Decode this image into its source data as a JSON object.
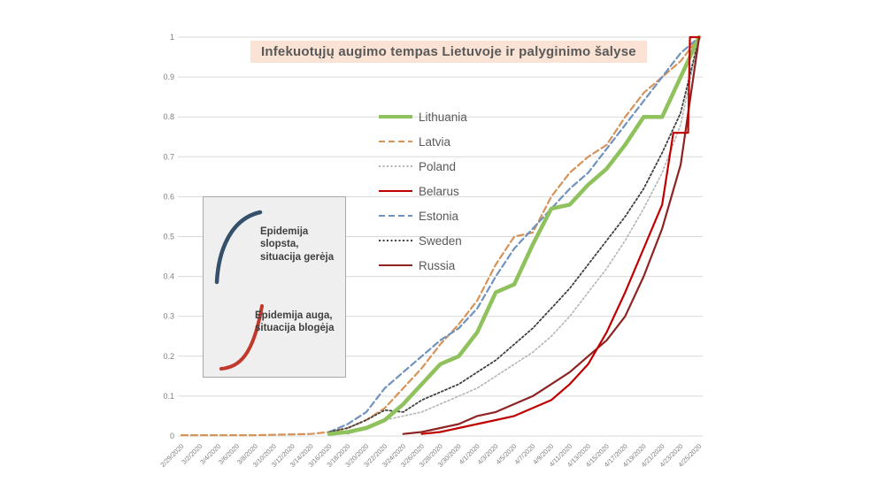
{
  "title": {
    "text": "Infekuotųjų augimo tempas Lietuvoje ir palyginimo šalyse",
    "bg_color": "#fae3d4",
    "text_color": "#595959"
  },
  "inset": {
    "bg_color": "#efefef",
    "border_color": "#a9a9a9",
    "items": [
      {
        "curve": "saturating-up",
        "curve_color": "#35506b",
        "lines": [
          "Epidemija",
          "slopsta,",
          "situacija gerėja"
        ]
      },
      {
        "curve": "exponential-up",
        "curve_color": "#c0392b",
        "lines": [
          "Epidemija auga,",
          "situacija blogėja"
        ]
      }
    ]
  },
  "chart_data": {
    "type": "line",
    "title": "Infekuotųjų augimo tempas Lietuvoje ir palyginimo šalyse",
    "xlabel": "",
    "ylabel": "",
    "ylim": [
      0,
      1
    ],
    "grid": "horizontal",
    "grid_color": "#d9d9d9",
    "axis_color": "#7f7f7f",
    "legend_position": "upper-center-inside",
    "y_ticks": [
      "0",
      "0.1",
      "0.2",
      "0.3",
      "0.4",
      "0.5",
      "0.6",
      "0.7",
      "0.8",
      "0.9",
      "1"
    ],
    "categories": [
      "2/29/2020",
      "3/2/2020",
      "3/4/2020",
      "3/6/2020",
      "3/8/2020",
      "3/10/2020",
      "3/12/2020",
      "3/14/2020",
      "3/16/2020",
      "3/18/2020",
      "3/20/2020",
      "3/22/2020",
      "3/24/2020",
      "3/26/2020",
      "3/28/2020",
      "3/30/2020",
      "4/1/2020",
      "4/3/2020",
      "4/5/2020",
      "4/7/2020",
      "4/9/2020",
      "4/11/2020",
      "4/13/2020",
      "4/15/2020",
      "4/17/2020",
      "4/19/2020",
      "4/21/2020",
      "4/23/2020",
      "4/25/2020"
    ],
    "draw_order": [
      1,
      4,
      2,
      5,
      0,
      6,
      3
    ],
    "series": [
      {
        "name": "Lithuania",
        "color": "#8fc15c",
        "style": "solid",
        "width": 4.5,
        "points": [
          [
            8,
            0.005
          ],
          [
            9,
            0.01
          ],
          [
            10,
            0.02
          ],
          [
            11,
            0.04
          ],
          [
            12,
            0.08
          ],
          [
            13,
            0.13
          ],
          [
            14,
            0.18
          ],
          [
            15,
            0.2
          ],
          [
            16,
            0.26
          ],
          [
            17,
            0.36
          ],
          [
            18,
            0.38
          ],
          [
            19,
            0.48
          ],
          [
            20,
            0.57
          ],
          [
            21,
            0.58
          ],
          [
            22,
            0.63
          ],
          [
            23,
            0.67
          ],
          [
            24,
            0.73
          ],
          [
            25,
            0.8
          ],
          [
            26,
            0.8
          ],
          [
            27,
            0.9
          ],
          [
            28,
            1
          ]
        ]
      },
      {
        "name": "Latvia",
        "color": "#d6935a",
        "style": "dashed",
        "width": 2.2,
        "points": [
          [
            0,
            0.002
          ],
          [
            4,
            0.002
          ],
          [
            7,
            0.005
          ],
          [
            8,
            0.01
          ],
          [
            9,
            0.02
          ],
          [
            10,
            0.04
          ],
          [
            11,
            0.07
          ],
          [
            12,
            0.12
          ],
          [
            13,
            0.17
          ],
          [
            14,
            0.23
          ],
          [
            15,
            0.28
          ],
          [
            16,
            0.34
          ],
          [
            17,
            0.43
          ],
          [
            18,
            0.5
          ],
          [
            19,
            0.51
          ],
          [
            20,
            0.6
          ],
          [
            21,
            0.66
          ],
          [
            22,
            0.7
          ],
          [
            23,
            0.73
          ],
          [
            24,
            0.8
          ],
          [
            25,
            0.86
          ],
          [
            26,
            0.9
          ],
          [
            27,
            0.94
          ],
          [
            28,
            1
          ]
        ]
      },
      {
        "name": "Poland",
        "color": "#b5b5b5",
        "style": "dotted",
        "width": 1.6,
        "points": [
          [
            9,
            0.005
          ],
          [
            10,
            0.02
          ],
          [
            11,
            0.04
          ],
          [
            12,
            0.05
          ],
          [
            13,
            0.06
          ],
          [
            14,
            0.08
          ],
          [
            15,
            0.1
          ],
          [
            16,
            0.12
          ],
          [
            17,
            0.15
          ],
          [
            18,
            0.18
          ],
          [
            19,
            0.21
          ],
          [
            20,
            0.25
          ],
          [
            21,
            0.3
          ],
          [
            22,
            0.36
          ],
          [
            23,
            0.42
          ],
          [
            24,
            0.49
          ],
          [
            25,
            0.57
          ],
          [
            26,
            0.66
          ],
          [
            27,
            0.78
          ],
          [
            28,
            1
          ]
        ]
      },
      {
        "name": "Belarus",
        "color": "#c00000",
        "style": "solid",
        "width": 2.2,
        "points": [
          [
            13,
            0.005
          ],
          [
            14,
            0.01
          ],
          [
            15,
            0.02
          ],
          [
            16,
            0.03
          ],
          [
            17,
            0.04
          ],
          [
            18,
            0.05
          ],
          [
            19,
            0.07
          ],
          [
            20,
            0.09
          ],
          [
            21,
            0.13
          ],
          [
            22,
            0.18
          ],
          [
            23,
            0.26
          ],
          [
            24,
            0.36
          ],
          [
            25,
            0.47
          ],
          [
            26,
            0.58
          ],
          [
            26.6,
            0.76
          ],
          [
            27.4,
            0.76
          ],
          [
            27.5,
            1
          ],
          [
            28,
            1
          ]
        ]
      },
      {
        "name": "Estonia",
        "color": "#6f93bd",
        "style": "dashed",
        "width": 2.2,
        "points": [
          [
            8,
            0.01
          ],
          [
            9,
            0.03
          ],
          [
            10,
            0.06
          ],
          [
            11,
            0.12
          ],
          [
            12,
            0.16
          ],
          [
            13,
            0.2
          ],
          [
            14,
            0.24
          ],
          [
            15,
            0.27
          ],
          [
            16,
            0.32
          ],
          [
            17,
            0.4
          ],
          [
            18,
            0.47
          ],
          [
            19,
            0.52
          ],
          [
            20,
            0.57
          ],
          [
            21,
            0.62
          ],
          [
            22,
            0.66
          ],
          [
            23,
            0.72
          ],
          [
            24,
            0.78
          ],
          [
            25,
            0.84
          ],
          [
            26,
            0.9
          ],
          [
            27,
            0.96
          ],
          [
            28,
            1
          ]
        ]
      },
      {
        "name": "Sweden",
        "color": "#404040",
        "style": "dotted",
        "width": 1.8,
        "points": [
          [
            8,
            0.01
          ],
          [
            9,
            0.02
          ],
          [
            10,
            0.04
          ],
          [
            11,
            0.065
          ],
          [
            12,
            0.06
          ],
          [
            13,
            0.09
          ],
          [
            14,
            0.11
          ],
          [
            15,
            0.13
          ],
          [
            16,
            0.16
          ],
          [
            17,
            0.19
          ],
          [
            18,
            0.23
          ],
          [
            19,
            0.27
          ],
          [
            20,
            0.32
          ],
          [
            21,
            0.37
          ],
          [
            22,
            0.43
          ],
          [
            23,
            0.49
          ],
          [
            24,
            0.55
          ],
          [
            25,
            0.62
          ],
          [
            26,
            0.71
          ],
          [
            27,
            0.81
          ],
          [
            28,
            1
          ]
        ]
      },
      {
        "name": "Russia",
        "color": "#8e2323",
        "style": "solid",
        "width": 2.2,
        "points": [
          [
            12,
            0.005
          ],
          [
            13,
            0.01
          ],
          [
            14,
            0.02
          ],
          [
            15,
            0.03
          ],
          [
            16,
            0.05
          ],
          [
            17,
            0.06
          ],
          [
            18,
            0.08
          ],
          [
            19,
            0.1
          ],
          [
            20,
            0.13
          ],
          [
            21,
            0.16
          ],
          [
            22,
            0.2
          ],
          [
            23,
            0.24
          ],
          [
            24,
            0.3
          ],
          [
            25,
            0.4
          ],
          [
            26,
            0.52
          ],
          [
            27,
            0.68
          ],
          [
            28,
            1
          ]
        ]
      }
    ]
  }
}
